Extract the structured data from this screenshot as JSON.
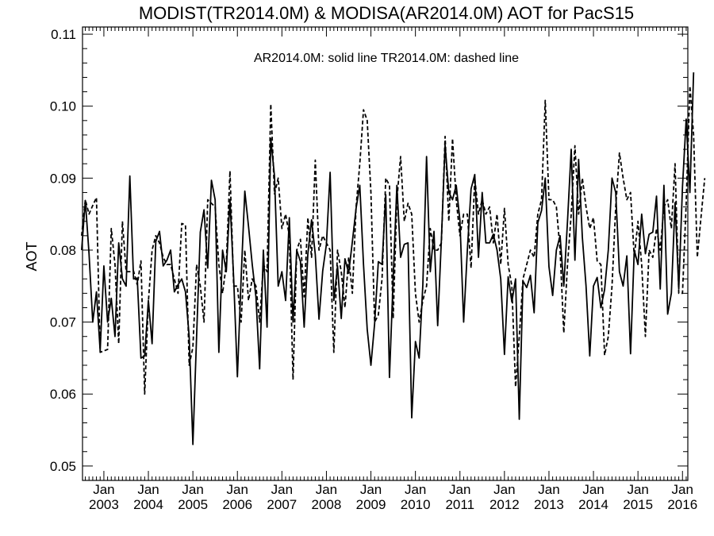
{
  "chart_data": {
    "type": "line",
    "title": "MODIST(TR2014.0M) & MODISA(AR2014.0M)  AOT for PacS15",
    "annotation": "AR2014.0M: solid line   TR2014.0M: dashed line",
    "xlabel": "",
    "ylabel": "AOT",
    "ylim": [
      0.048,
      0.111
    ],
    "xlim": [
      2002.52,
      2016.12
    ],
    "yticks": [
      0.05,
      0.06,
      0.07,
      0.08,
      0.09,
      0.1,
      0.11
    ],
    "ytick_labels": [
      "0.05",
      "0.06",
      "0.07",
      "0.08",
      "0.09",
      "0.10",
      "0.11"
    ],
    "xticks": [
      2003,
      2004,
      2005,
      2006,
      2007,
      2008,
      2009,
      2010,
      2011,
      2012,
      2013,
      2014,
      2015,
      2016
    ],
    "xtick_month": "Jan",
    "xtick_years": [
      "2003",
      "2004",
      "2005",
      "2006",
      "2007",
      "2008",
      "2009",
      "2010",
      "2011",
      "2012",
      "2013",
      "2014",
      "2015",
      "2016"
    ],
    "x_start": "2002-07",
    "x_step": "1 month",
    "grid": false,
    "series": [
      {
        "style": "solid",
        "values": [
          0.08,
          0.0869,
          0.0795,
          0.07,
          0.0742,
          0.066,
          0.0778,
          0.07,
          0.0733,
          0.068,
          0.081,
          0.076,
          0.075,
          0.0903,
          0.076,
          0.0761,
          0.065,
          0.0653,
          0.073,
          0.067,
          0.0812,
          0.0826,
          0.0778,
          0.0786,
          0.08,
          0.0742,
          0.0752,
          0.076,
          0.0742,
          0.068,
          0.053,
          0.068,
          0.0825,
          0.0856,
          0.0775,
          0.0897,
          0.087,
          0.0658,
          0.08,
          0.077,
          0.087,
          0.076,
          0.0624,
          0.076,
          0.0882,
          0.0833,
          0.078,
          0.0735,
          0.0635,
          0.08,
          0.0693,
          0.0955,
          0.0903,
          0.075,
          0.077,
          0.073,
          0.0845,
          0.07,
          0.08,
          0.0784,
          0.0693,
          0.0795,
          0.0842,
          0.0794,
          0.0704,
          0.0771,
          0.0808,
          0.0908,
          0.073,
          0.0778,
          0.0705,
          0.0788,
          0.0768,
          0.0812,
          0.0858,
          0.089,
          0.078,
          0.069,
          0.064,
          0.0698,
          0.0784,
          0.078,
          0.0877,
          0.0623,
          0.0761,
          0.089,
          0.079,
          0.0808,
          0.081,
          0.0567,
          0.0673,
          0.065,
          0.0752,
          0.093,
          0.077,
          0.0826,
          0.0695,
          0.0815,
          0.0946,
          0.088,
          0.087,
          0.089,
          0.0841,
          0.07,
          0.08,
          0.0885,
          0.0905,
          0.079,
          0.088,
          0.081,
          0.081,
          0.0822,
          0.08,
          0.076,
          0.0655,
          0.0763,
          0.0728,
          0.076,
          0.0565,
          0.0757,
          0.0748,
          0.0765,
          0.0713,
          0.0838,
          0.0855,
          0.09,
          0.0777,
          0.0737,
          0.08,
          0.082,
          0.075,
          0.084,
          0.094,
          0.0786,
          0.0926,
          0.0818,
          0.075,
          0.0653,
          0.075,
          0.0762,
          0.072,
          0.0745,
          0.08,
          0.09,
          0.088,
          0.077,
          0.075,
          0.0792,
          0.0656,
          0.08,
          0.078,
          0.085,
          0.0795,
          0.0822,
          0.0825,
          0.0875,
          0.0746,
          0.089,
          0.0711,
          0.074,
          0.0866,
          0.0746,
          0.0888,
          0.0982,
          0.088,
          0.1047
        ]
      },
      {
        "style": "dashed",
        "values": [
          0.082,
          0.087,
          0.085,
          0.0862,
          0.0873,
          0.0658,
          0.066,
          0.0662,
          0.083,
          0.078,
          0.067,
          0.084,
          0.077,
          0.077,
          0.0771,
          0.0752,
          0.0785,
          0.06,
          0.0728,
          0.08,
          0.082,
          0.081,
          0.079,
          0.078,
          0.078,
          0.076,
          0.074,
          0.0837,
          0.0835,
          0.064,
          0.0665,
          0.078,
          0.075,
          0.07,
          0.087,
          0.0865,
          0.086,
          0.078,
          0.074,
          0.078,
          0.091,
          0.075,
          0.075,
          0.07,
          0.08,
          0.073,
          0.076,
          0.075,
          0.07,
          0.078,
          0.077,
          0.1003,
          0.0878,
          0.09,
          0.083,
          0.085,
          0.082,
          0.062,
          0.08,
          0.0815,
          0.0735,
          0.0845,
          0.079,
          0.0925,
          0.08,
          0.082,
          0.081,
          0.08,
          0.0658,
          0.08,
          0.077,
          0.072,
          0.079,
          0.074,
          0.086,
          0.092,
          0.0995,
          0.098,
          0.088,
          0.07,
          0.071,
          0.076,
          0.09,
          0.089,
          0.0705,
          0.087,
          0.093,
          0.084,
          0.0865,
          0.085,
          0.074,
          0.07,
          0.073,
          0.075,
          0.083,
          0.08,
          0.08,
          0.081,
          0.0958,
          0.084,
          0.0955,
          0.087,
          0.082,
          0.085,
          0.085,
          0.0775,
          0.09,
          0.085,
          0.087,
          0.085,
          0.086,
          0.081,
          0.085,
          0.078,
          0.0858,
          0.078,
          0.075,
          0.061,
          0.068,
          0.076,
          0.078,
          0.08,
          0.079,
          0.085,
          0.087,
          0.1008,
          0.087,
          0.087,
          0.086,
          0.08,
          0.0685,
          0.078,
          0.085,
          0.0945,
          0.085,
          0.09,
          0.086,
          0.083,
          0.0845,
          0.0785,
          0.078,
          0.0654,
          0.068,
          0.075,
          0.086,
          0.0935,
          0.09,
          0.087,
          0.088,
          0.079,
          0.084,
          0.078,
          0.068,
          0.08,
          0.079,
          0.083,
          0.08,
          0.086,
          0.087,
          0.083,
          0.092,
          0.074,
          0.074,
          0.0865,
          0.1028,
          0.096,
          0.079,
          0.0846,
          0.09
        ]
      }
    ]
  }
}
